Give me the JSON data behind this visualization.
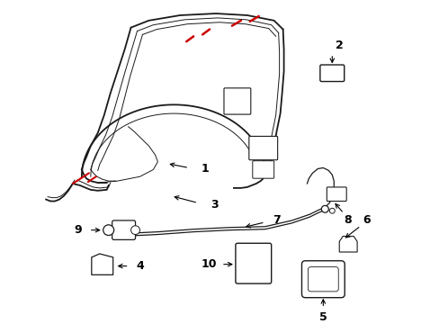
{
  "bg_color": "#ffffff",
  "fig_width": 4.89,
  "fig_height": 3.6,
  "dpi": 100,
  "line_color": "#1a1a1a",
  "red_color": "#cc0000",
  "label_fontsize": 9
}
